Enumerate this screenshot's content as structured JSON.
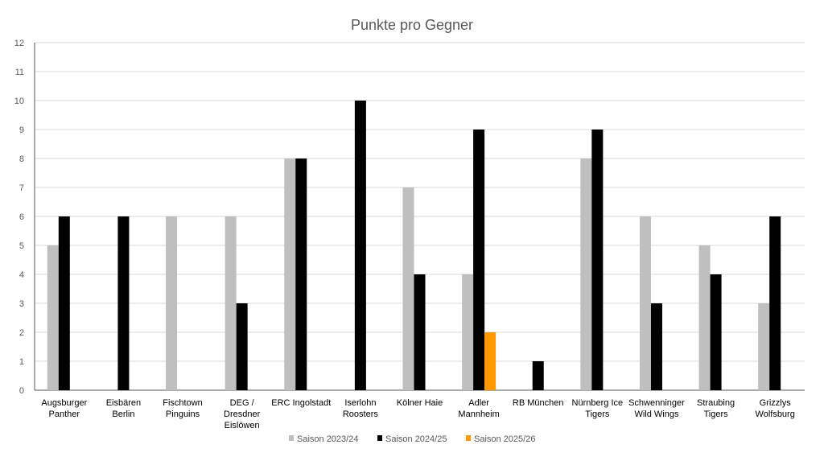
{
  "chart_data": {
    "type": "bar",
    "title": "Punkte pro Gegner",
    "xlabel": "",
    "ylabel": "",
    "ylim": [
      0,
      12
    ],
    "yticks": [
      0,
      1,
      2,
      3,
      4,
      5,
      6,
      7,
      8,
      9,
      10,
      11,
      12
    ],
    "grid": true,
    "legend_position": "bottom",
    "categories": [
      [
        "Augsburger",
        "Panther"
      ],
      [
        "Eisbären",
        "Berlin"
      ],
      [
        "Fischtown",
        "Pinguins"
      ],
      [
        "DEG /",
        "Dresdner",
        "Eislöwen"
      ],
      [
        "ERC Ingolstadt"
      ],
      [
        "Iserlohn",
        "Roosters"
      ],
      [
        "Kölner Haie"
      ],
      [
        "Adler",
        "Mannheim"
      ],
      [
        "RB München"
      ],
      [
        "Nürnberg Ice",
        "Tigers"
      ],
      [
        "Schwenninger",
        "Wild Wings"
      ],
      [
        "Straubing",
        "Tigers"
      ],
      [
        "Grizzlys",
        "Wolfsburg"
      ]
    ],
    "series": [
      {
        "name": "Saison 2023/24",
        "color": "#BFBFBF",
        "values": [
          5,
          0,
          6,
          6,
          8,
          0,
          7,
          4,
          0,
          8,
          6,
          5,
          3
        ]
      },
      {
        "name": "Saison 2024/25",
        "color": "#000000",
        "values": [
          6,
          6,
          0,
          3,
          8,
          10,
          4,
          9,
          1,
          9,
          3,
          4,
          6
        ]
      },
      {
        "name": "Saison 2025/26",
        "color": "#FF9900",
        "values": [
          0,
          0,
          0,
          0,
          0,
          0,
          0,
          2,
          0,
          0,
          0,
          0,
          0
        ]
      }
    ]
  }
}
